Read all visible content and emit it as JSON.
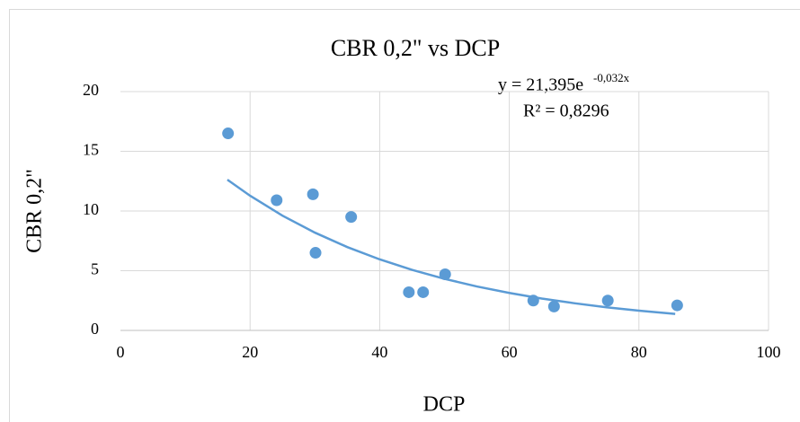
{
  "chart_data": {
    "type": "scatter",
    "title": "CBR 0,2\" vs DCP",
    "x_label": "DCP",
    "y_label": "CBR 0,2\"",
    "series": [
      {
        "name": "CBR 0,2\"",
        "color": "#5b9bd5",
        "x": [
          16.6,
          24.1,
          29.7,
          30.1,
          35.6,
          44.5,
          46.7,
          50.1,
          63.7,
          66.9,
          75.2,
          85.9
        ],
        "values": [
          16.5,
          10.9,
          11.4,
          6.5,
          9.5,
          3.2,
          3.2,
          4.7,
          2.5,
          2.0,
          2.5,
          2.1
        ]
      }
    ],
    "trendline": {
      "color": "#5b9bd5",
      "equation": "y = 21,395e",
      "exponent": "-0,032x",
      "r2": "R² = 0,8296",
      "x": [
        16.5,
        20,
        25,
        30,
        35,
        40,
        45,
        50,
        55,
        60,
        65,
        70,
        75,
        80,
        85.6
      ],
      "values": [
        12.62,
        11.28,
        9.61,
        8.19,
        6.98,
        5.95,
        5.07,
        4.32,
        3.68,
        3.14,
        2.67,
        2.28,
        1.94,
        1.65,
        1.38
      ]
    },
    "xlim": [
      0,
      100
    ],
    "xticks": [
      0,
      20,
      40,
      60,
      80,
      100
    ],
    "ylim": [
      0,
      20
    ],
    "yticks": [
      0,
      5,
      10,
      15,
      20
    ],
    "grid": true
  }
}
